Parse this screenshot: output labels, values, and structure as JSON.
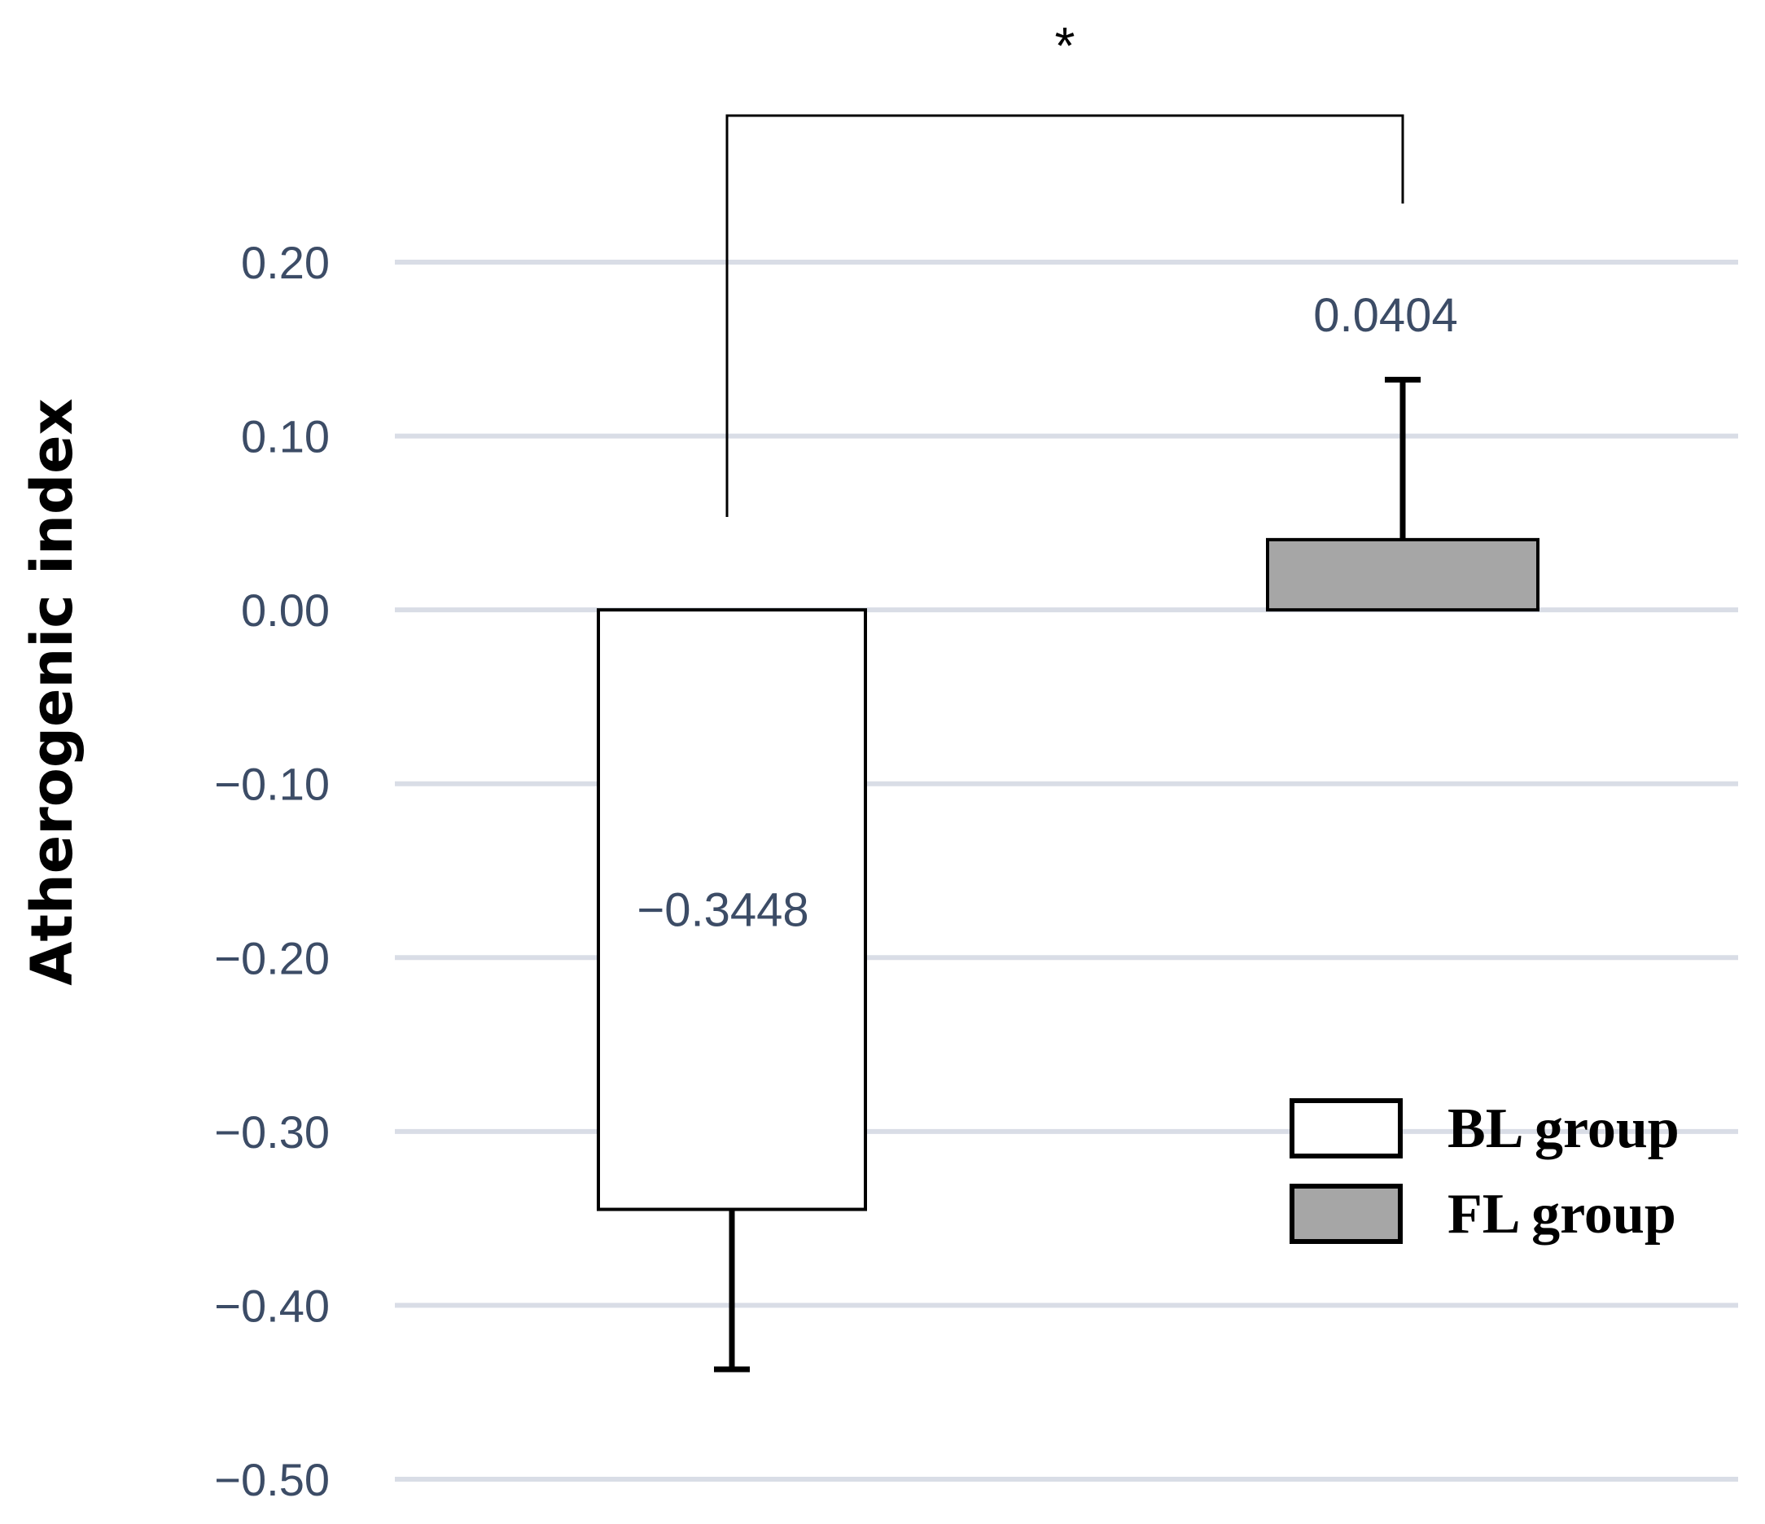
{
  "chart_data": {
    "type": "bar",
    "ylabel": "Atherogenic index",
    "ylim": [
      -0.5,
      0.2
    ],
    "yticks": [
      0.2,
      0.1,
      0.0,
      -0.1,
      -0.2,
      -0.3,
      -0.4,
      -0.5
    ],
    "ytick_labels": [
      "0.20",
      "0.10",
      "0.00",
      "−0.10",
      "−0.20",
      "−0.30",
      "−0.40",
      "−0.50"
    ],
    "grid": true,
    "legend_position": "bottom-right",
    "series": [
      {
        "name": "BL group",
        "value": -0.3448,
        "error": 0.092,
        "value_label": "−0.3448",
        "color": "#ffffff"
      },
      {
        "name": "FL group",
        "value": 0.0404,
        "error": 0.092,
        "value_label": "0.0404",
        "color": "#a6a6a6"
      }
    ],
    "significance": {
      "label": "*",
      "between": [
        "BL group",
        "FL group"
      ]
    },
    "colors": {
      "grid": "#d9dde6",
      "tick_text": "#3c4c66",
      "outline": "#000000"
    }
  }
}
